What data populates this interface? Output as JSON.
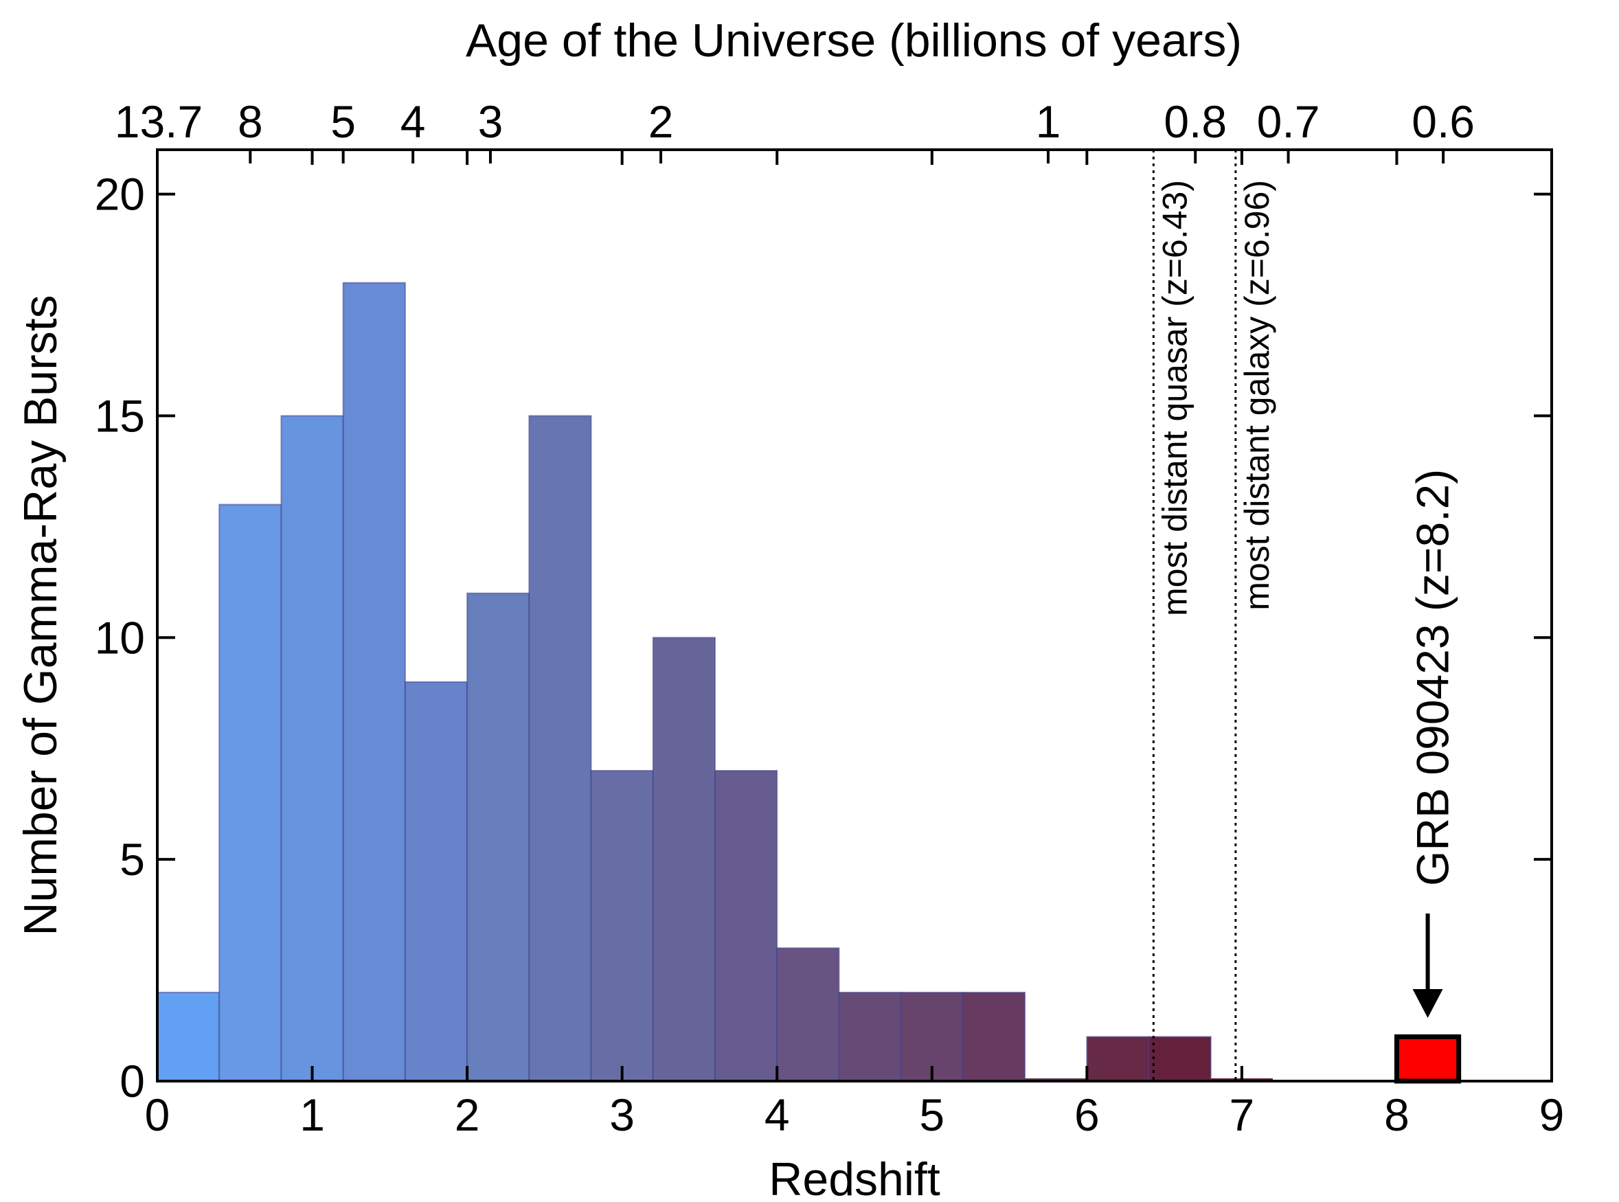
{
  "chart_data": {
    "type": "bar",
    "xlabel": "Redshift",
    "ylabel": "Number of Gamma-Ray Bursts",
    "top_axis_label": "Age of the Universe  (billions of years)",
    "xlim": [
      0,
      9
    ],
    "ylim": [
      0,
      21
    ],
    "x_ticks": [
      "0",
      "1",
      "2",
      "3",
      "4",
      "5",
      "6",
      "7",
      "8",
      "9"
    ],
    "y_ticks": [
      "0",
      "5",
      "10",
      "15",
      "20"
    ],
    "top_ticks": [
      {
        "label": "13.7",
        "z": 0
      },
      {
        "label": "8",
        "z": 0.6
      },
      {
        "label": "5",
        "z": 1.2
      },
      {
        "label": "4",
        "z": 1.65
      },
      {
        "label": "3",
        "z": 2.15
      },
      {
        "label": "2",
        "z": 3.25
      },
      {
        "label": "1",
        "z": 5.75
      },
      {
        "label": "0.8",
        "z": 6.7
      },
      {
        "label": "0.7",
        "z": 7.3
      },
      {
        "label": "0.6",
        "z": 8.3
      }
    ],
    "bin_width": 0.4,
    "bins": [
      {
        "x0": 0.0,
        "count": 2,
        "color": "#62a0f3"
      },
      {
        "x0": 0.4,
        "count": 13,
        "color": "#6799e6"
      },
      {
        "x0": 0.8,
        "count": 15,
        "color": "#6794de"
      },
      {
        "x0": 1.2,
        "count": 18,
        "color": "#678bd4"
      },
      {
        "x0": 1.6,
        "count": 9,
        "color": "#6783c9"
      },
      {
        "x0": 2.0,
        "count": 11,
        "color": "#677fbd"
      },
      {
        "x0": 2.4,
        "count": 15,
        "color": "#6776b2"
      },
      {
        "x0": 2.8,
        "count": 7,
        "color": "#676ea6"
      },
      {
        "x0": 3.2,
        "count": 10,
        "color": "#67659a"
      },
      {
        "x0": 3.6,
        "count": 7,
        "color": "#675c8f"
      },
      {
        "x0": 4.0,
        "count": 3,
        "color": "#675483"
      },
      {
        "x0": 4.4,
        "count": 2,
        "color": "#674b77"
      },
      {
        "x0": 4.8,
        "count": 2,
        "color": "#67446c"
      },
      {
        "x0": 5.2,
        "count": 2,
        "color": "#673b61"
      },
      {
        "x0": 5.6,
        "count": 0,
        "color": "#673255"
      },
      {
        "x0": 6.0,
        "count": 1,
        "color": "#662946"
      },
      {
        "x0": 6.4,
        "count": 1,
        "color": "#65213c"
      },
      {
        "x0": 6.8,
        "count": 0,
        "color": "#651a33"
      }
    ],
    "highlight_bin": {
      "x0": 8.0,
      "count": 1,
      "color": "#ff0000"
    },
    "reference_lines": [
      {
        "z": 6.43,
        "label": "most distant quasar (z=6.43)"
      },
      {
        "z": 6.96,
        "label": "most distant galaxy (z=6.96)"
      }
    ],
    "annotation": {
      "label": "GRB 090423 (z=8.2)",
      "z": 8.2
    }
  }
}
